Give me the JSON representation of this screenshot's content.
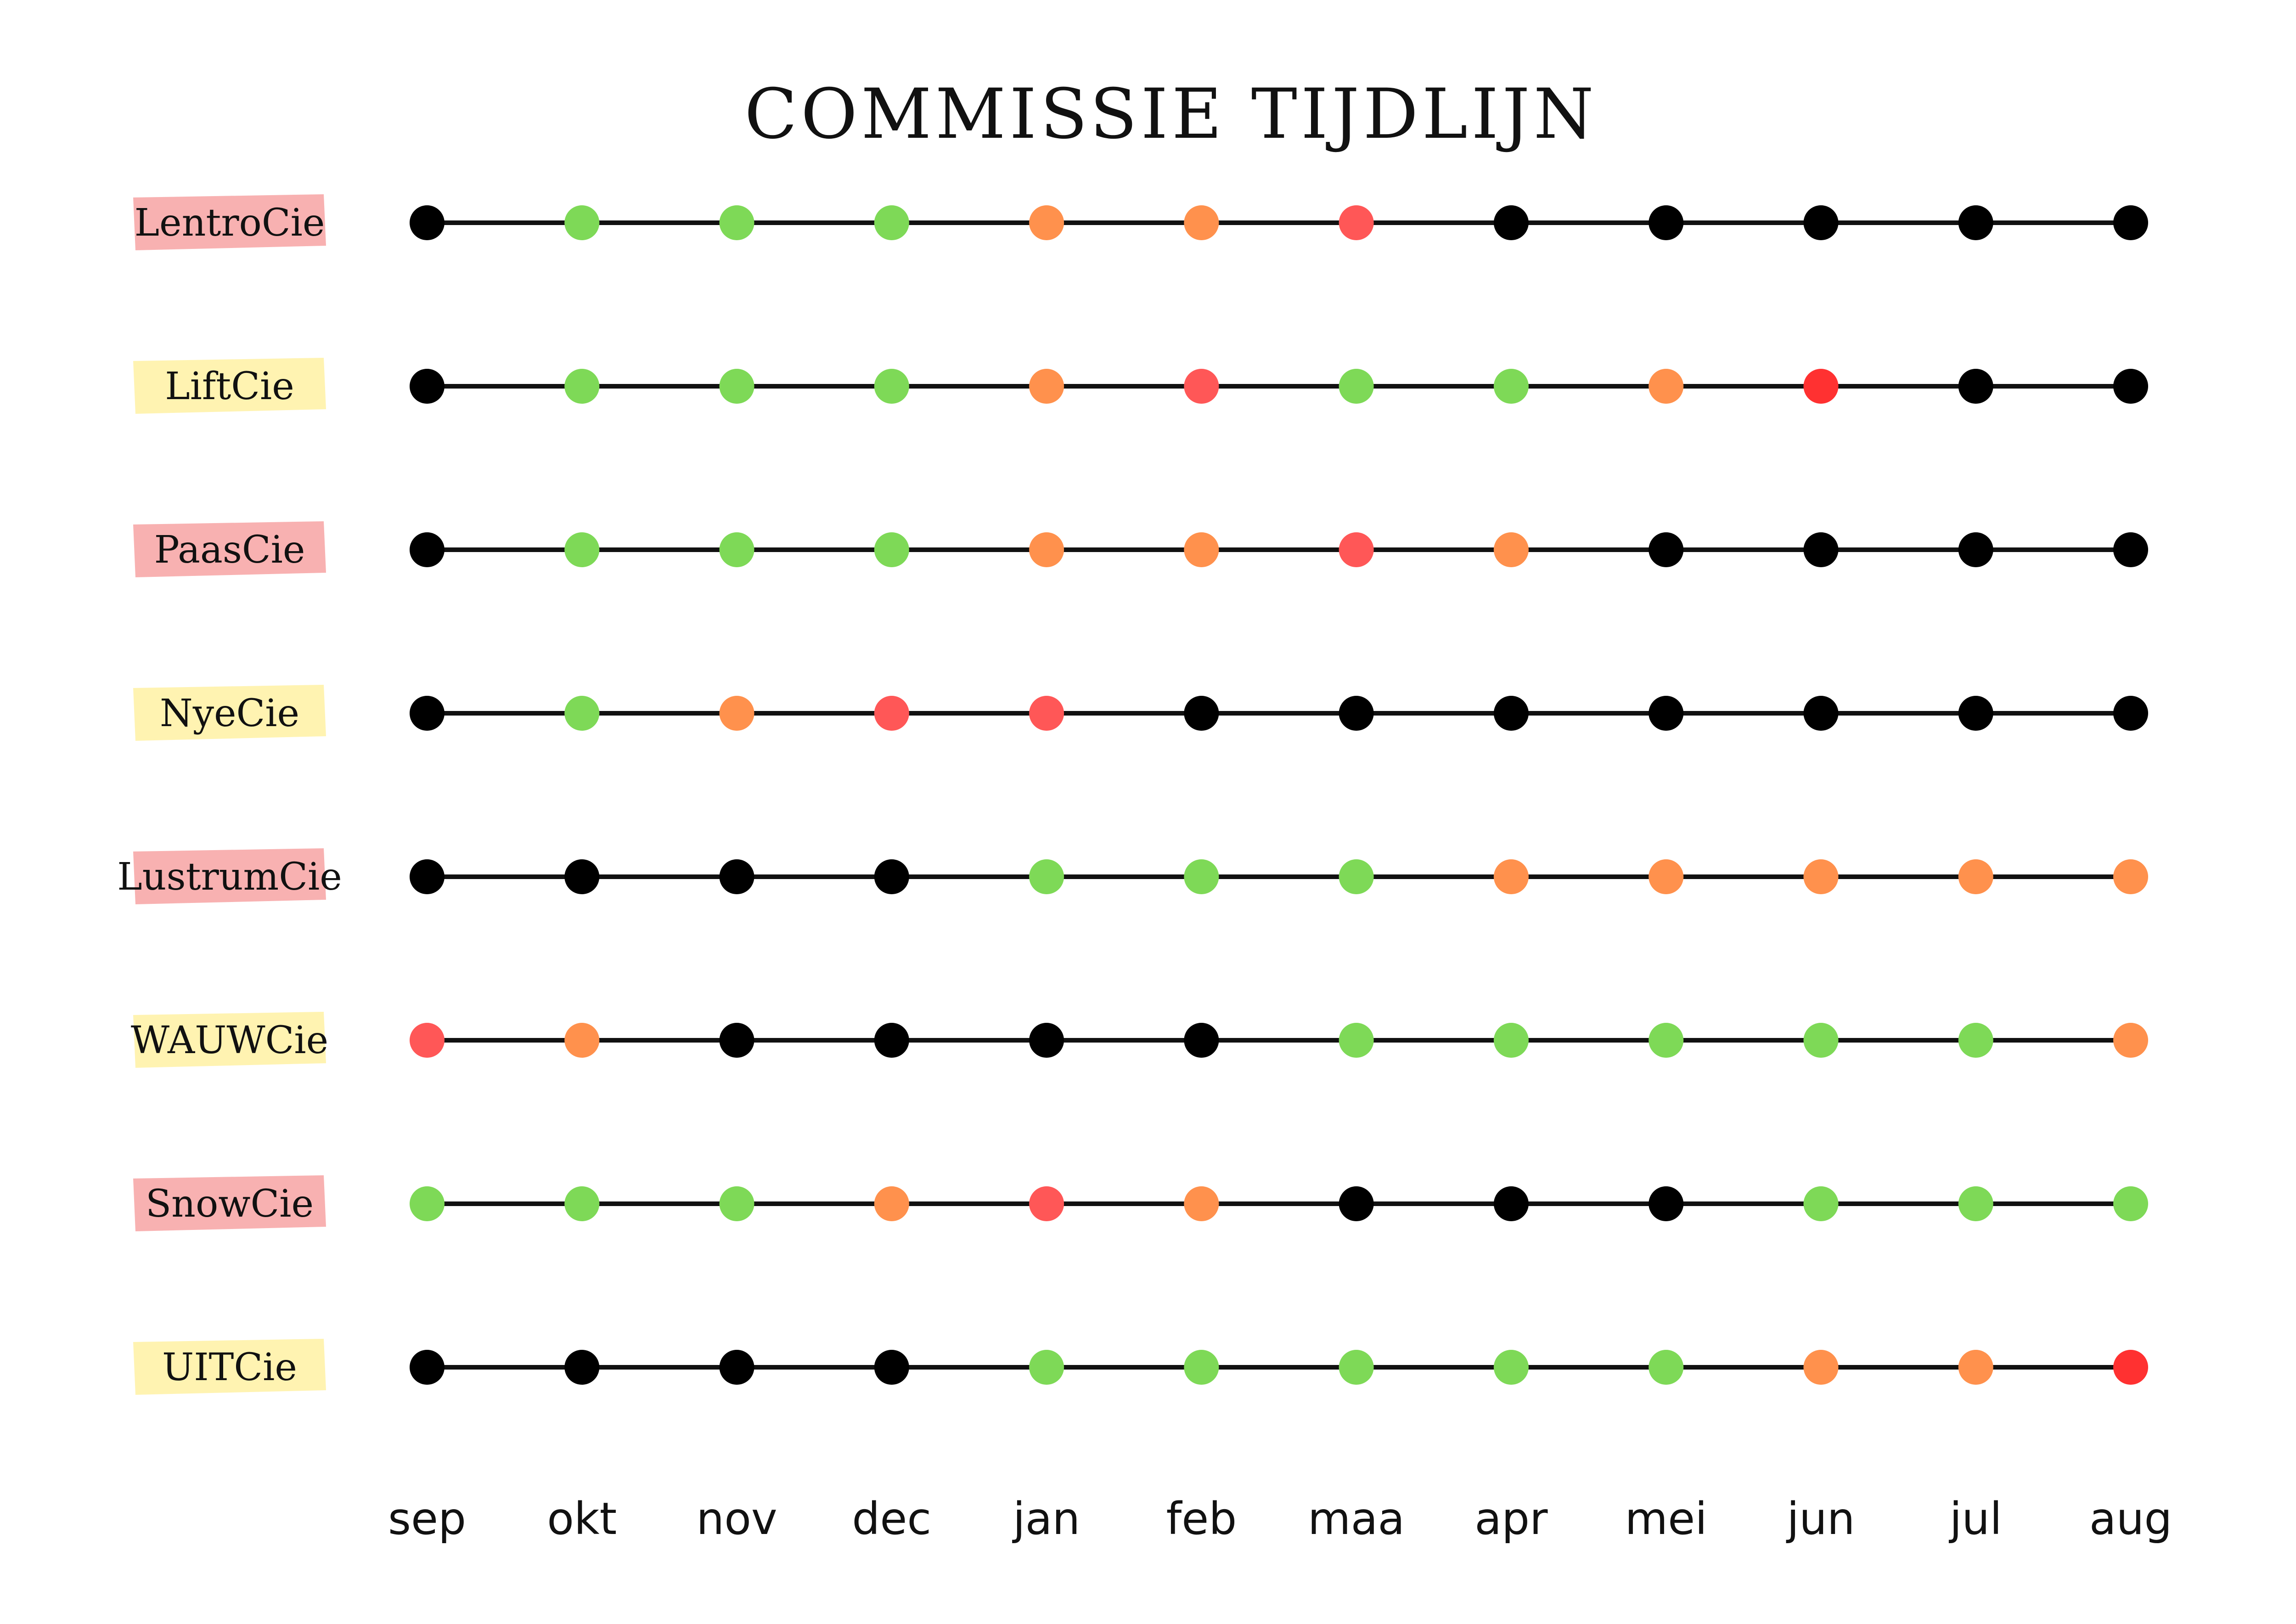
{
  "chart_data": {
    "type": "timeline",
    "title": "COMMISSIE TIJDLIJN",
    "categories": [
      "sep",
      "okt",
      "nov",
      "dec",
      "jan",
      "feb",
      "maa",
      "apr",
      "mei",
      "jun",
      "jul",
      "aug"
    ],
    "status_colors": {
      "black": "#000000",
      "green": "#7ED957",
      "orange": "#FF914D",
      "coral": "#FF5757",
      "red": "#FF3131"
    },
    "label_highlight_colors": {
      "pink": "#F7A8A8",
      "yellow": "#FFF2A8"
    },
    "series": [
      {
        "name": "LentroCie",
        "highlight": "pink",
        "values": [
          "black",
          "green",
          "green",
          "green",
          "orange",
          "orange",
          "coral",
          "black",
          "black",
          "black",
          "black",
          "black"
        ]
      },
      {
        "name": "LiftCie",
        "highlight": "yellow",
        "values": [
          "black",
          "green",
          "green",
          "green",
          "orange",
          "coral",
          "green",
          "green",
          "orange",
          "red",
          "black",
          "black"
        ]
      },
      {
        "name": "PaasCie",
        "highlight": "pink",
        "values": [
          "black",
          "green",
          "green",
          "green",
          "orange",
          "orange",
          "coral",
          "orange",
          "black",
          "black",
          "black",
          "black"
        ]
      },
      {
        "name": "NyeCie",
        "highlight": "yellow",
        "values": [
          "black",
          "green",
          "orange",
          "coral",
          "coral",
          "black",
          "black",
          "black",
          "black",
          "black",
          "black",
          "black"
        ]
      },
      {
        "name": "LustrumCie",
        "highlight": "pink",
        "values": [
          "black",
          "black",
          "black",
          "black",
          "green",
          "green",
          "green",
          "orange",
          "orange",
          "orange",
          "orange",
          "orange"
        ]
      },
      {
        "name": "WAUWCie",
        "highlight": "yellow",
        "values": [
          "coral",
          "orange",
          "black",
          "black",
          "black",
          "black",
          "green",
          "green",
          "green",
          "green",
          "green",
          "orange"
        ]
      },
      {
        "name": "SnowCie",
        "highlight": "pink",
        "values": [
          "green",
          "green",
          "green",
          "orange",
          "coral",
          "orange",
          "black",
          "black",
          "black",
          "green",
          "green",
          "green"
        ]
      },
      {
        "name": "UITCie",
        "highlight": "yellow",
        "values": [
          "black",
          "black",
          "black",
          "black",
          "green",
          "green",
          "green",
          "green",
          "green",
          "orange",
          "orange",
          "red"
        ]
      }
    ]
  }
}
